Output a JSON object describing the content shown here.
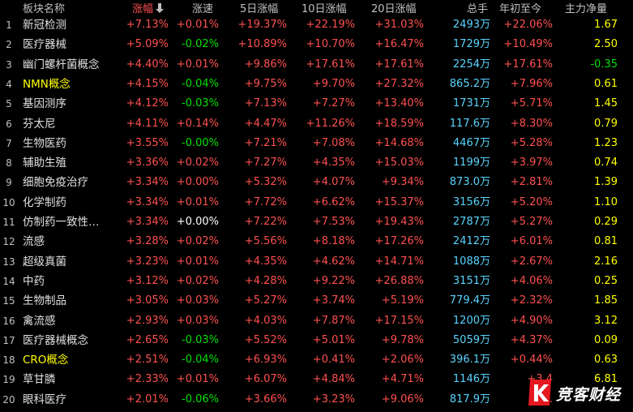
{
  "header": {
    "col_name": "板块名称",
    "col_change": "涨幅",
    "col_speed": "涨速",
    "col_5d": "5日涨幅",
    "col_10d": "10日涨幅",
    "col_20d": "20日涨幅",
    "col_volume": "总手",
    "col_ytd": "年初至今",
    "col_netflow": "主力净量",
    "sort_icon": "arrow-down-icon"
  },
  "rows": [
    {
      "idx": "1",
      "name": "新冠检测",
      "change": "+7.13%",
      "speed": "+0.01%",
      "d5": "+19.37%",
      "d10": "+22.19%",
      "d20": "+31.03%",
      "vol": "2493万",
      "ytd": "+22.06%",
      "net": "1.67",
      "speed_dir": "up",
      "net_dir": "up",
      "ytd_dir": "up",
      "highlight": false
    },
    {
      "idx": "2",
      "name": "医疗器械",
      "change": "+5.09%",
      "speed": "-0.02%",
      "d5": "+10.89%",
      "d10": "+10.70%",
      "d20": "+16.47%",
      "vol": "1729万",
      "ytd": "+10.49%",
      "net": "2.50",
      "speed_dir": "down",
      "net_dir": "up",
      "ytd_dir": "up",
      "highlight": false
    },
    {
      "idx": "3",
      "name": "幽门螺杆菌概念",
      "change": "+4.40%",
      "speed": "+0.01%",
      "d5": "+9.86%",
      "d10": "+17.61%",
      "d20": "+17.61%",
      "vol": "2254万",
      "ytd": "+17.61%",
      "net": "-0.35",
      "speed_dir": "up",
      "net_dir": "down",
      "ytd_dir": "up",
      "highlight": false
    },
    {
      "idx": "4",
      "name": "NMN概念",
      "change": "+4.15%",
      "speed": "-0.04%",
      "d5": "+9.75%",
      "d10": "+9.70%",
      "d20": "+27.32%",
      "vol": "865.2万",
      "ytd": "+7.96%",
      "net": "0.61",
      "speed_dir": "down",
      "net_dir": "up",
      "ytd_dir": "up",
      "highlight": true
    },
    {
      "idx": "5",
      "name": "基因测序",
      "change": "+4.12%",
      "speed": "-0.03%",
      "d5": "+7.13%",
      "d10": "+7.27%",
      "d20": "+13.40%",
      "vol": "1731万",
      "ytd": "+5.71%",
      "net": "1.45",
      "speed_dir": "down",
      "net_dir": "up",
      "ytd_dir": "up",
      "highlight": false
    },
    {
      "idx": "6",
      "name": "芬太尼",
      "change": "+4.11%",
      "speed": "+0.14%",
      "d5": "+4.47%",
      "d10": "+11.26%",
      "d20": "+18.59%",
      "vol": "117.6万",
      "ytd": "+8.30%",
      "net": "0.79",
      "speed_dir": "up",
      "net_dir": "up",
      "ytd_dir": "up",
      "highlight": false
    },
    {
      "idx": "7",
      "name": "生物医药",
      "change": "+3.55%",
      "speed": "-0.00%",
      "d5": "+7.21%",
      "d10": "+7.08%",
      "d20": "+14.68%",
      "vol": "4467万",
      "ytd": "+5.28%",
      "net": "1.23",
      "speed_dir": "down",
      "net_dir": "up",
      "ytd_dir": "up",
      "highlight": false
    },
    {
      "idx": "8",
      "name": "辅助生殖",
      "change": "+3.36%",
      "speed": "+0.02%",
      "d5": "+7.27%",
      "d10": "+4.35%",
      "d20": "+15.03%",
      "vol": "1199万",
      "ytd": "+3.97%",
      "net": "0.74",
      "speed_dir": "up",
      "net_dir": "up",
      "ytd_dir": "up",
      "highlight": false
    },
    {
      "idx": "9",
      "name": "细胞免疫治疗",
      "change": "+3.34%",
      "speed": "+0.00%",
      "d5": "+5.32%",
      "d10": "+4.07%",
      "d20": "+9.34%",
      "vol": "873.0万",
      "ytd": "+2.81%",
      "net": "1.39",
      "speed_dir": "up",
      "net_dir": "up",
      "ytd_dir": "up",
      "highlight": false
    },
    {
      "idx": "10",
      "name": "化学制药",
      "change": "+3.34%",
      "speed": "+0.01%",
      "d5": "+7.72%",
      "d10": "+6.62%",
      "d20": "+15.37%",
      "vol": "3156万",
      "ytd": "+5.20%",
      "net": "1.10",
      "speed_dir": "up",
      "net_dir": "up",
      "ytd_dir": "up",
      "highlight": false
    },
    {
      "idx": "11",
      "name": "仿制药一致性…",
      "change": "+3.34%",
      "speed": "+0.00%",
      "d5": "+7.22%",
      "d10": "+7.53%",
      "d20": "+19.43%",
      "vol": "2787万",
      "ytd": "+5.27%",
      "net": "0.29",
      "speed_dir": "flat",
      "net_dir": "up",
      "ytd_dir": "up",
      "highlight": false
    },
    {
      "idx": "12",
      "name": "流感",
      "change": "+3.28%",
      "speed": "+0.02%",
      "d5": "+5.56%",
      "d10": "+8.18%",
      "d20": "+17.26%",
      "vol": "2412万",
      "ytd": "+6.01%",
      "net": "0.81",
      "speed_dir": "up",
      "net_dir": "up",
      "ytd_dir": "up",
      "highlight": false
    },
    {
      "idx": "13",
      "name": "超级真菌",
      "change": "+3.23%",
      "speed": "+0.01%",
      "d5": "+4.35%",
      "d10": "+4.62%",
      "d20": "+14.71%",
      "vol": "1088万",
      "ytd": "+2.67%",
      "net": "2.16",
      "speed_dir": "up",
      "net_dir": "up",
      "ytd_dir": "up",
      "highlight": false
    },
    {
      "idx": "14",
      "name": "中药",
      "change": "+3.12%",
      "speed": "+0.02%",
      "d5": "+4.28%",
      "d10": "+9.22%",
      "d20": "+26.88%",
      "vol": "3151万",
      "ytd": "+4.06%",
      "net": "0.25",
      "speed_dir": "up",
      "net_dir": "up",
      "ytd_dir": "up",
      "highlight": false
    },
    {
      "idx": "15",
      "name": "生物制品",
      "change": "+3.05%",
      "speed": "+0.03%",
      "d5": "+5.27%",
      "d10": "+3.74%",
      "d20": "+5.19%",
      "vol": "779.4万",
      "ytd": "+2.32%",
      "net": "1.85",
      "speed_dir": "up",
      "net_dir": "up",
      "ytd_dir": "up",
      "highlight": false
    },
    {
      "idx": "16",
      "name": "禽流感",
      "change": "+2.93%",
      "speed": "+0.03%",
      "d5": "+4.03%",
      "d10": "+7.87%",
      "d20": "+17.15%",
      "vol": "1200万",
      "ytd": "+4.90%",
      "net": "3.12",
      "speed_dir": "up",
      "net_dir": "up",
      "ytd_dir": "up",
      "highlight": false
    },
    {
      "idx": "17",
      "name": "医疗器械概念",
      "change": "+2.65%",
      "speed": "-0.03%",
      "d5": "+5.52%",
      "d10": "+5.01%",
      "d20": "+9.78%",
      "vol": "5059万",
      "ytd": "+4.37%",
      "net": "0.09",
      "speed_dir": "down",
      "net_dir": "up",
      "ytd_dir": "up",
      "highlight": false
    },
    {
      "idx": "18",
      "name": "CRO概念",
      "change": "+2.51%",
      "speed": "-0.04%",
      "d5": "+6.93%",
      "d10": "+0.41%",
      "d20": "+2.06%",
      "vol": "396.1万",
      "ytd": "+0.44%",
      "net": "0.63",
      "speed_dir": "down",
      "net_dir": "up",
      "ytd_dir": "up",
      "highlight": true
    },
    {
      "idx": "19",
      "name": "草甘膦",
      "change": "+2.33%",
      "speed": "+0.01%",
      "d5": "+6.07%",
      "d10": "+4.84%",
      "d20": "+4.71%",
      "vol": "1146万",
      "ytd": "+3.4",
      "net": "6.81",
      "speed_dir": "up",
      "net_dir": "up",
      "ytd_dir": "up",
      "highlight": false
    },
    {
      "idx": "20",
      "name": "眼科医疗",
      "change": "+2.01%",
      "speed": "-0.06%",
      "d5": "+3.66%",
      "d10": "+3.23%",
      "d20": "+9.06%",
      "vol": "817.9万",
      "ytd": "+1.",
      "net": "",
      "speed_dir": "down",
      "net_dir": "up",
      "ytd_dir": "up",
      "highlight": false
    }
  ],
  "watermark": {
    "text": "竞客财经",
    "logo_icon": "k-brand-logo-icon"
  },
  "colors": {
    "up": "#ff5050",
    "down": "#00e000",
    "flat": "#ffffff",
    "volume": "#5ad4ff",
    "highlight": "#ffff00",
    "background": "#000000"
  }
}
